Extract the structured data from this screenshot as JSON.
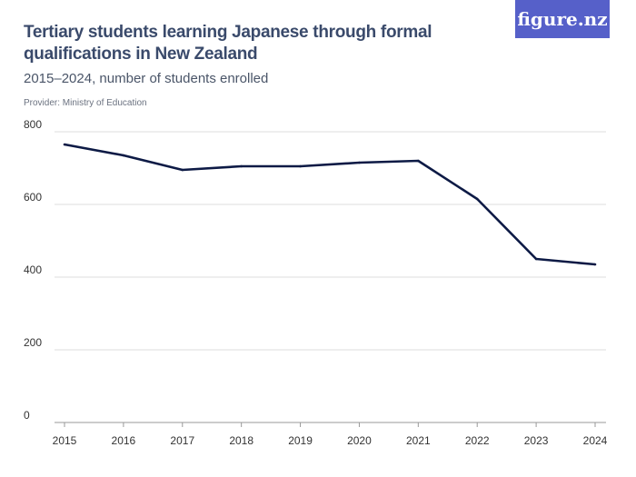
{
  "title": "Tertiary students learning Japanese through formal qualifications in New Zealand",
  "subtitle": "2015–2024, number of students enrolled",
  "provider": "Provider: Ministry of Education",
  "logo": "figure.nz",
  "colors": {
    "line": "#0d1a45",
    "grid": "#dddddd",
    "logo_bg": "#5660c9"
  },
  "chart_data": {
    "type": "line",
    "title": "Tertiary students learning Japanese through formal qualifications in New Zealand",
    "subtitle": "2015–2024, number of students enrolled",
    "xlabel": "",
    "ylabel": "",
    "categories": [
      "2015",
      "2016",
      "2017",
      "2018",
      "2019",
      "2020",
      "2021",
      "2022",
      "2023",
      "2024"
    ],
    "values": [
      765,
      735,
      695,
      705,
      705,
      715,
      720,
      615,
      450,
      435
    ],
    "ylim": [
      0,
      800
    ],
    "yticks": [
      0,
      200,
      400,
      600,
      800
    ],
    "grid": true,
    "legend": "none"
  }
}
